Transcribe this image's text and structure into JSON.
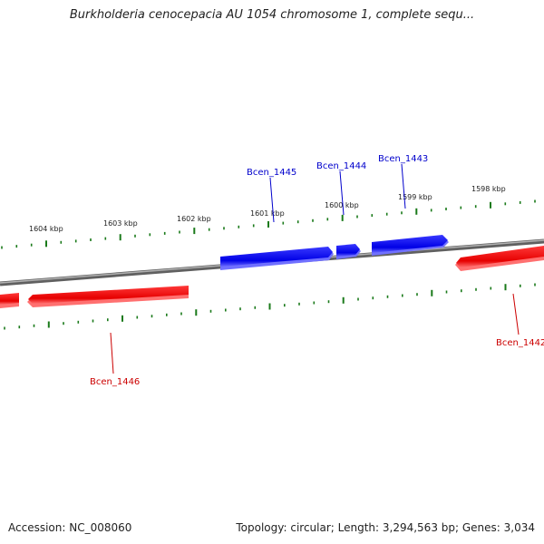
{
  "title": "Burkholderia cenocepacia AU 1054 chromosome 1, complete sequ...",
  "footer": {
    "accession": "Accession: NC_008060",
    "stats": "Topology: circular; Length: 3,294,563 bp; Genes: 3,034"
  },
  "colors": {
    "forward_gene": "#0000ee",
    "reverse_gene": "#ee0000",
    "tick": "#1a7a1a",
    "backbone": "#808080"
  },
  "scale_labels": {
    "kbp_1604": "1604 kbp",
    "kbp_1603": "1603 kbp",
    "kbp_1602": "1602 kbp",
    "kbp_1601": "1601 kbp",
    "kbp_1600": "1600 kbp",
    "kbp_1599": "1599 kbp",
    "kbp_1598": "1598 kbp"
  },
  "genes": {
    "bcen_1445": {
      "name": "Bcen_1445",
      "strand": "forward"
    },
    "bcen_1444": {
      "name": "Bcen_1444",
      "strand": "forward"
    },
    "bcen_1443": {
      "name": "Bcen_1443",
      "strand": "forward"
    },
    "bcen_1446": {
      "name": "Bcen_1446",
      "strand": "reverse"
    },
    "bcen_1442": {
      "name": "Bcen_1442",
      "strand": "reverse"
    }
  }
}
